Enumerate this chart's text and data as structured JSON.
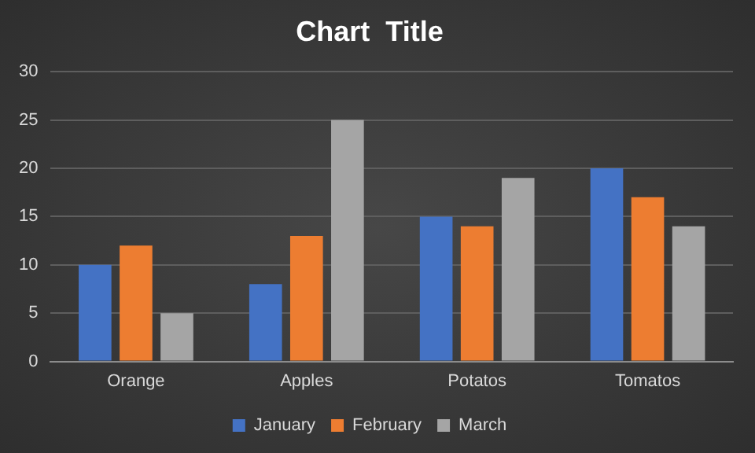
{
  "chart_data": {
    "type": "bar",
    "title": "Chart  Title",
    "categories": [
      "Orange",
      "Apples",
      "Potatos",
      "Tomatos"
    ],
    "series": [
      {
        "name": "January",
        "color": "#4472c4",
        "values": [
          10,
          8,
          15,
          20
        ]
      },
      {
        "name": "February",
        "color": "#ed7d31",
        "values": [
          12,
          13,
          14,
          17
        ]
      },
      {
        "name": "March",
        "color": "#a5a5a5",
        "values": [
          5,
          25,
          19,
          14
        ]
      }
    ],
    "ylim": [
      0,
      30
    ],
    "yticks": [
      0,
      5,
      10,
      15,
      20,
      25,
      30
    ],
    "grid": "y",
    "legend": "bottom"
  }
}
